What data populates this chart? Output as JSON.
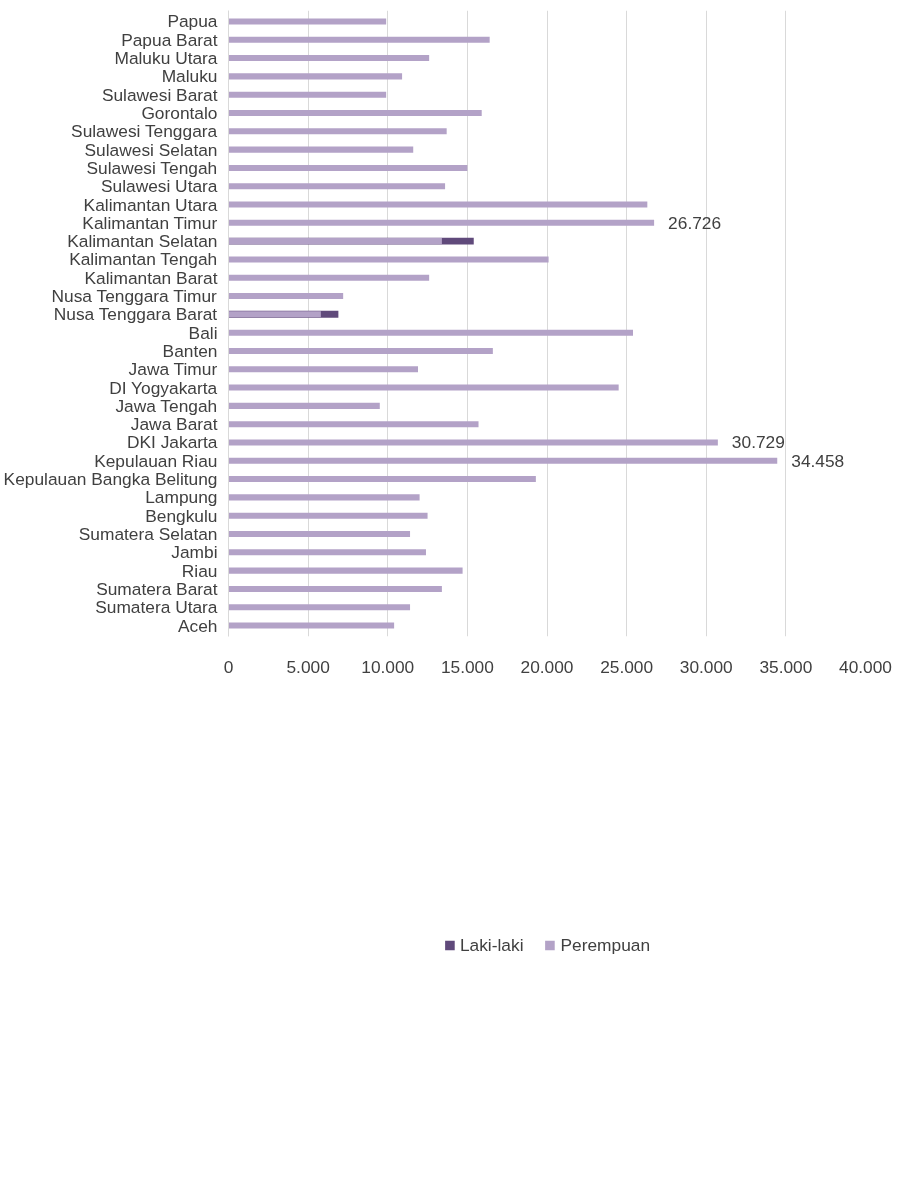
{
  "chart_data": {
    "type": "bar",
    "orientation": "horizontal",
    "categories": [
      "Papua",
      "Papua Barat",
      "Maluku Utara",
      "Maluku",
      "Sulawesi Barat",
      "Gorontalo",
      "Sulawesi Tenggara",
      "Sulawesi Selatan",
      "Sulawesi Tengah",
      "Sulawesi Utara",
      "Kalimantan Utara",
      "Kalimantan Timur",
      "Kalimantan Selatan",
      "Kalimantan Tengah",
      "Kalimantan Barat",
      "Nusa Tenggara Timur",
      "Nusa Tenggara Barat",
      "Bali",
      "Banten",
      "Jawa Timur",
      "DI Yogyakarta",
      "Jawa Tengah",
      "Jawa Barat",
      "DKI Jakarta",
      "Kepulauan Riau",
      "Kepulauan Bangka Belitung",
      "Lampung",
      "Bengkulu",
      "Sumatera Selatan",
      "Jambi",
      "Riau",
      "Sumatera Barat",
      "Sumatera Utara",
      "Aceh"
    ],
    "series": [
      {
        "name": "Laki-laki",
        "color": "#604a7b",
        "values": [
          null,
          null,
          null,
          null,
          null,
          null,
          null,
          null,
          null,
          null,
          null,
          null,
          15400,
          null,
          null,
          null,
          6900,
          null,
          null,
          null,
          null,
          null,
          null,
          null,
          null,
          null,
          null,
          null,
          null,
          null,
          null,
          null,
          null,
          null
        ]
      },
      {
        "name": "Perempuan",
        "color": "#b3a2c7",
        "values": [
          9900,
          16400,
          12600,
          10900,
          9900,
          15900,
          13700,
          11600,
          15000,
          13600,
          26300,
          26726,
          13400,
          20100,
          12600,
          7200,
          5800,
          25400,
          16600,
          11900,
          24500,
          9500,
          15700,
          30729,
          34458,
          19300,
          12000,
          12500,
          11400,
          12400,
          14700,
          13400,
          11400,
          10400
        ],
        "value_labels": [
          null,
          null,
          null,
          null,
          null,
          null,
          null,
          null,
          null,
          null,
          null,
          "26.726",
          null,
          null,
          null,
          null,
          null,
          null,
          null,
          null,
          null,
          null,
          null,
          "30.729",
          "34.458",
          null,
          null,
          null,
          null,
          null,
          null,
          null,
          null,
          null
        ]
      }
    ],
    "xlim": [
      0,
      40000
    ],
    "xticks": [
      0,
      {
        "value": 5000,
        "label": "5.000"
      },
      {
        "value": 10000,
        "label": "10.000"
      },
      {
        "value": 15000,
        "label": "15.000"
      },
      {
        "value": 20000,
        "label": "20.000"
      },
      {
        "value": 25000,
        "label": "25.000"
      },
      {
        "value": 30000,
        "label": "30.000"
      },
      {
        "value": 35000,
        "label": "35.000"
      },
      {
        "value": 40000,
        "label": "40.000"
      }
    ],
    "grid": "x",
    "legend": "bottom"
  }
}
